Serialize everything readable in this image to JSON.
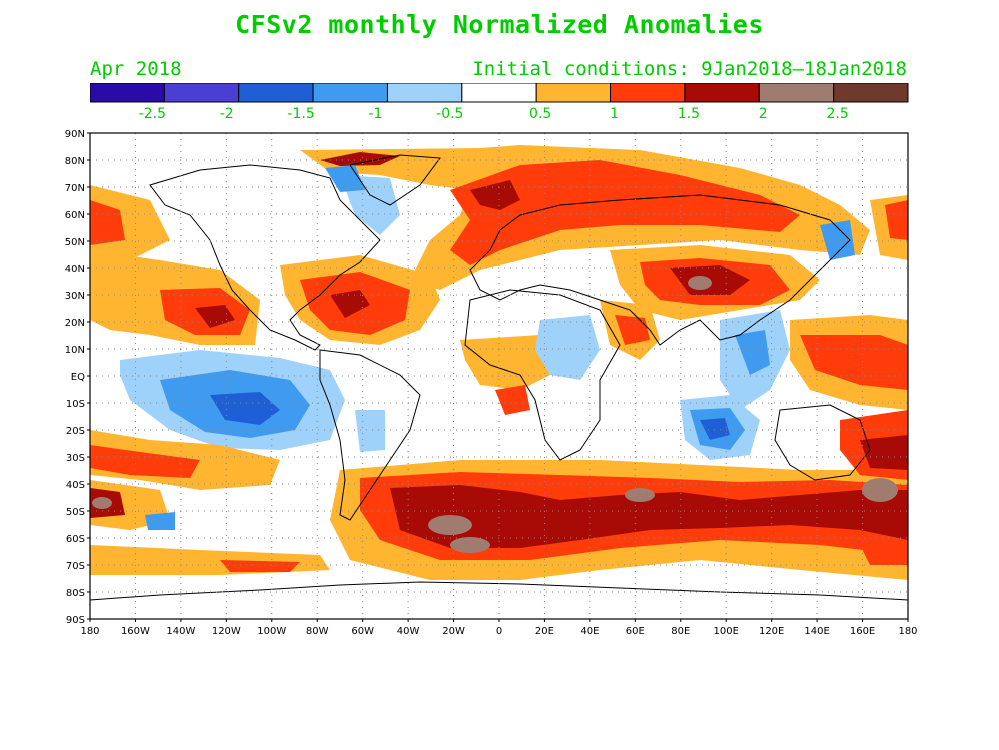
{
  "title": "CFSv2 monthly Normalized Anomalies",
  "valid_month": "Apr 2018",
  "initial_conditions": "Initial conditions: 9Jan2018–18Jan2018",
  "colorbar": {
    "colors": [
      "#2a0aa8",
      "#4a3fd2",
      "#1f5fd6",
      "#3f9bf0",
      "#9fd2fa",
      "#ffffff",
      "#ffb530",
      "#ff3c0a",
      "#a80a05",
      "#a07c70",
      "#6e3a2e"
    ],
    "tick_labels": [
      "-2.5",
      "-2",
      "-1.5",
      "-1",
      "-0.5",
      "0.5",
      "1",
      "1.5",
      "2",
      "2.5"
    ]
  },
  "map": {
    "lat_labels": [
      "90N",
      "80N",
      "70N",
      "60N",
      "50N",
      "40N",
      "30N",
      "20N",
      "10N",
      "EQ",
      "10S",
      "20S",
      "30S",
      "40S",
      "50S",
      "60S",
      "70S",
      "80S",
      "90S"
    ],
    "lon_labels": [
      "180",
      "160W",
      "140W",
      "120W",
      "100W",
      "80W",
      "60W",
      "40W",
      "20W",
      "0",
      "20E",
      "40E",
      "60E",
      "80E",
      "100E",
      "120E",
      "140E",
      "160E",
      "180"
    ],
    "grid": true
  }
}
